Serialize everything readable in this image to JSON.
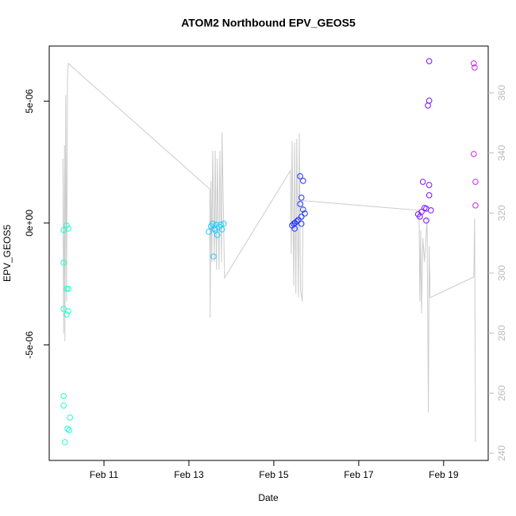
{
  "chart_data": {
    "type": "scatter",
    "title": "ATOM2 Northbound EPV_GEOS5",
    "xlabel": "Date",
    "ylabel": "EPV_GEOS5",
    "xlim": [
      9.71,
      20.05
    ],
    "ylim": [
      -9.74e-06,
      7.26e-06
    ],
    "y2lim": [
      237.6,
      375.6
    ],
    "xticks": [
      {
        "value": 11,
        "label": "Feb 11"
      },
      {
        "value": 13,
        "label": "Feb 13"
      },
      {
        "value": 15,
        "label": "Feb 15"
      },
      {
        "value": 17,
        "label": "Feb 17"
      },
      {
        "value": 19,
        "label": "Feb 19"
      }
    ],
    "yticks": [
      {
        "value": -5e-06,
        "label": "-5e-06"
      },
      {
        "value": 0,
        "label": "0e+00"
      },
      {
        "value": 5e-06,
        "label": "5e-06"
      }
    ],
    "y2ticks": [
      240,
      260,
      280,
      300,
      320,
      340,
      360
    ],
    "series": [
      {
        "color": "#22ffcc",
        "x": [
          10.05,
          10.05,
          10.05,
          10.05,
          10.05,
          10.08,
          10.12,
          10.12,
          10.16,
          10.16,
          10.16,
          10.12,
          10.14,
          10.18,
          10.2
        ],
        "values": [
          -2.9e-07,
          -1.63e-06,
          -3.52e-06,
          -7.1e-06,
          -7.49e-06,
          -8.99e-06,
          -1e-07,
          -2.7e-06,
          -2.3e-07,
          -2.7e-06,
          -3.62e-06,
          -3.75e-06,
          -8.44e-06,
          -8.5e-06,
          -7.98e-06
        ]
      },
      {
        "color": "#22ccff",
        "x": [
          13.47,
          13.52,
          13.56,
          13.6,
          13.64,
          13.67,
          13.71,
          13.75,
          13.78,
          13.82,
          13.58,
          13.62
        ],
        "values": [
          -3.6e-07,
          -1.3e-07,
          -3e-08,
          -2.3e-07,
          -7e-08,
          -4.9e-07,
          -1.6e-07,
          -7e-08,
          -2.6e-07,
          -3e-08,
          -1.37e-06,
          -2.9e-07
        ]
      },
      {
        "color": "#2233ff",
        "x": [
          15.43,
          15.47,
          15.5,
          15.54,
          15.58,
          15.62,
          15.62,
          15.65,
          15.65,
          15.69,
          15.69,
          15.73,
          15.65,
          15.49
        ],
        "values": [
          -1e-07,
          -3e-08,
          0,
          7e-08,
          1.3e-07,
          1.92e-06,
          7.8e-07,
          2.6e-07,
          1.04e-06,
          1.73e-06,
          5.5e-07,
          3.9e-07,
          -3e-08,
          -2.3e-07
        ]
      },
      {
        "color": "#7711ff",
        "x": [
          18.4,
          18.44,
          18.48,
          18.51,
          18.55,
          18.59,
          18.63,
          18.66,
          18.66,
          18.66,
          18.66,
          18.7,
          18.59
        ],
        "values": [
          3.6e-07,
          2.6e-07,
          4.6e-07,
          1.69e-06,
          6.2e-07,
          1e-07,
          4.82e-06,
          6.64e-06,
          5.02e-06,
          1.14e-06,
          1.56e-06,
          5.2e-07,
          5.9e-07
        ]
      },
      {
        "color": "#cc22ee",
        "x": [
          19.71,
          19.73,
          19.71,
          19.75,
          19.75
        ],
        "values": [
          6.55e-06,
          6.38e-06,
          2.83e-06,
          1.69e-06,
          7.2e-07
        ]
      },
      {
        "type": "line",
        "axis": "y2",
        "color": "#cccccc",
        "x": [
          10.03,
          10.05,
          10.07,
          10.08,
          10.1,
          10.12,
          10.14,
          10.16,
          13.49,
          13.5,
          13.52,
          13.54,
          13.56,
          13.6,
          13.62,
          13.65,
          13.67,
          13.71,
          13.73,
          13.77,
          13.78,
          13.84,
          15.39,
          15.41,
          15.43,
          15.47,
          15.49,
          15.52,
          15.54,
          15.58,
          15.6,
          15.63,
          15.67,
          15.69,
          18.42,
          18.44,
          18.46,
          18.48,
          18.51,
          18.55,
          18.61,
          18.64,
          18.66,
          18.68,
          19.71,
          19.73,
          19.75
        ],
        "values": [
          338.1,
          280.0,
          342.6,
          277.3,
          359.2,
          290.5,
          365.8,
          369.8,
          328.0,
          285.2,
          330.7,
          303.7,
          340.7,
          303.7,
          340.7,
          301.1,
          338.1,
          301.1,
          340.7,
          303.7,
          346.8,
          298.4,
          334.1,
          306.4,
          343.9,
          295.8,
          343.4,
          293.2,
          344.7,
          291.8,
          346.5,
          294.5,
          290.5,
          324.1,
          320.9,
          290.5,
          314.3,
          286.6,
          311.6,
          303.7,
          318.3,
          253.5,
          309.0,
          291.8,
          298.7,
          318.3,
          243.8
        ]
      }
    ]
  }
}
